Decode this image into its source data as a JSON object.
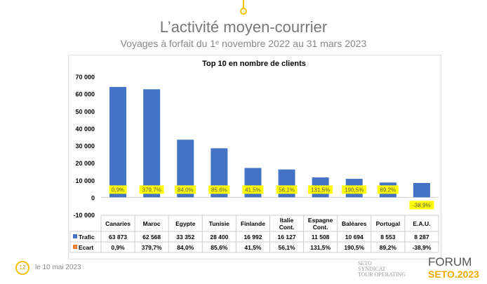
{
  "header": {
    "title": "L’activité moyen-courrier",
    "subtitle": "Voyages à forfait du 1ᵉ novembre 2022 au 31 mars 2023"
  },
  "footer": {
    "page": "12",
    "date": "le 10 mai 2023",
    "logo_seto": "SETO SYNDICAT DES ENTREPRISES DU TOUR OPERATING",
    "forum": "FORUM",
    "forum_year": "SETO.2023"
  },
  "colors": {
    "trafic": "#4472C4",
    "ecart": "#ED7D31",
    "label_bg": "#FFFF00",
    "accent": "#F2C200"
  },
  "chart_data": {
    "type": "bar",
    "title": "Top 10 en nombre de clients",
    "categories": [
      "Canaries",
      "Maroc",
      "Egypte",
      "Tunisie",
      "Finlande",
      "Italie Cont.",
      "Espagne Cont.",
      "Baléares",
      "Portugal",
      "E.A.U."
    ],
    "series": [
      {
        "name": "Trafic",
        "values": [
          63873,
          62568,
          33352,
          28400,
          16992,
          16127,
          11508,
          10694,
          8553,
          8287
        ],
        "labels": [
          "63 873",
          "62 568",
          "33 352",
          "28 400",
          "16 992",
          "16 127",
          "11 508",
          "10 694",
          "8 553",
          "8 287"
        ]
      },
      {
        "name": "Ecart",
        "values": [
          0.9,
          379.7,
          84.0,
          85.6,
          41.5,
          56.1,
          131.5,
          190.5,
          89.2,
          -38.9
        ],
        "labels": [
          "0,9%",
          "379,7%",
          "84,0%",
          "85,6%",
          "41,5%",
          "56,1%",
          "131,5%",
          "190,5%",
          "89,2%",
          "-38,9%"
        ]
      }
    ],
    "ylim": [
      -10000,
      70000
    ],
    "yticks": [
      -10000,
      0,
      10000,
      20000,
      30000,
      40000,
      50000,
      60000,
      70000
    ],
    "ytick_labels": [
      "-10 000",
      "0",
      "10 000",
      "20 000",
      "30 000",
      "40 000",
      "50 000",
      "60 000",
      "70 000"
    ],
    "grid": false,
    "legend": "data-table"
  }
}
